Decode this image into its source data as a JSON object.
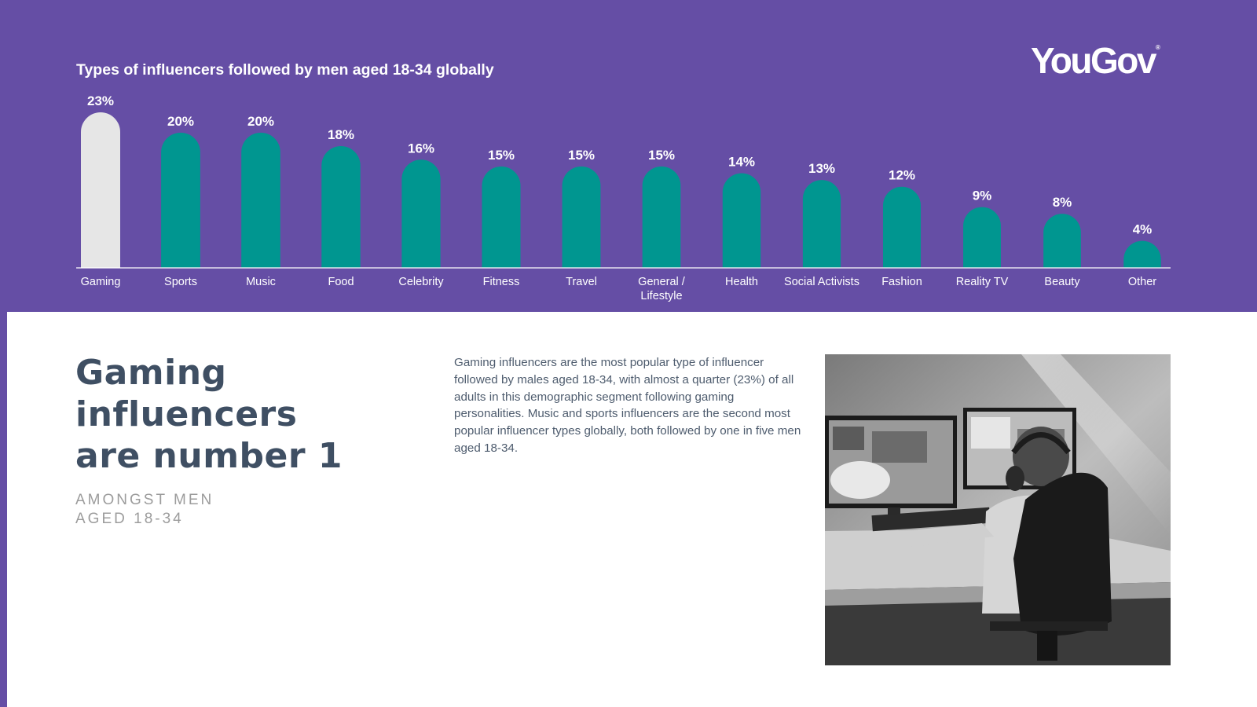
{
  "brand": {
    "logo_text": "YouGov",
    "registered_mark": "®"
  },
  "colors": {
    "background": "#654ea5",
    "bar_primary": "#009690",
    "bar_highlight": "#e6e6e6",
    "headline": "#3f4f63",
    "subhead": "#9c9c9c"
  },
  "chart_data": {
    "type": "bar",
    "title": "Types of influencers followed by men aged 18-34 globally",
    "categories": [
      "Gaming",
      "Sports",
      "Music",
      "Food",
      "Celebrity",
      "Fitness",
      "Travel",
      "General / Lifestyle",
      "Health",
      "Social Activists",
      "Fashion",
      "Reality TV",
      "Beauty",
      "Other"
    ],
    "category_lines": [
      [
        "Gaming"
      ],
      [
        "Sports"
      ],
      [
        "Music"
      ],
      [
        "Food"
      ],
      [
        "Celebrity"
      ],
      [
        "Fitness"
      ],
      [
        "Travel"
      ],
      [
        "General /",
        "Lifestyle"
      ],
      [
        "Health"
      ],
      [
        "Social Activists"
      ],
      [
        "Fashion"
      ],
      [
        "Reality TV"
      ],
      [
        "Beauty"
      ],
      [
        "Other"
      ]
    ],
    "values": [
      23,
      20,
      20,
      18,
      16,
      15,
      15,
      15,
      14,
      13,
      12,
      9,
      8,
      4
    ],
    "data_labels": [
      "23%",
      "20%",
      "20%",
      "18%",
      "16%",
      "15%",
      "15%",
      "15%",
      "14%",
      "13%",
      "12%",
      "9%",
      "8%",
      "4%"
    ],
    "highlight_index": 0,
    "ylim": [
      0,
      23
    ],
    "grid": false,
    "legend": "none"
  },
  "headline": {
    "line1": "Gaming",
    "line2": "influencers",
    "line3": "are number 1"
  },
  "subhead": {
    "line1": "AMONGST MEN",
    "line2": "AGED 18-34"
  },
  "body_text": "Gaming influencers are the most popular type of influencer followed by males aged 18-34, with almost a quarter (23%) of all adults in this demographic segment following gaming personalities. Music and sports influencers are the second most popular influencer types globally, both followed by one in five men aged 18-34."
}
